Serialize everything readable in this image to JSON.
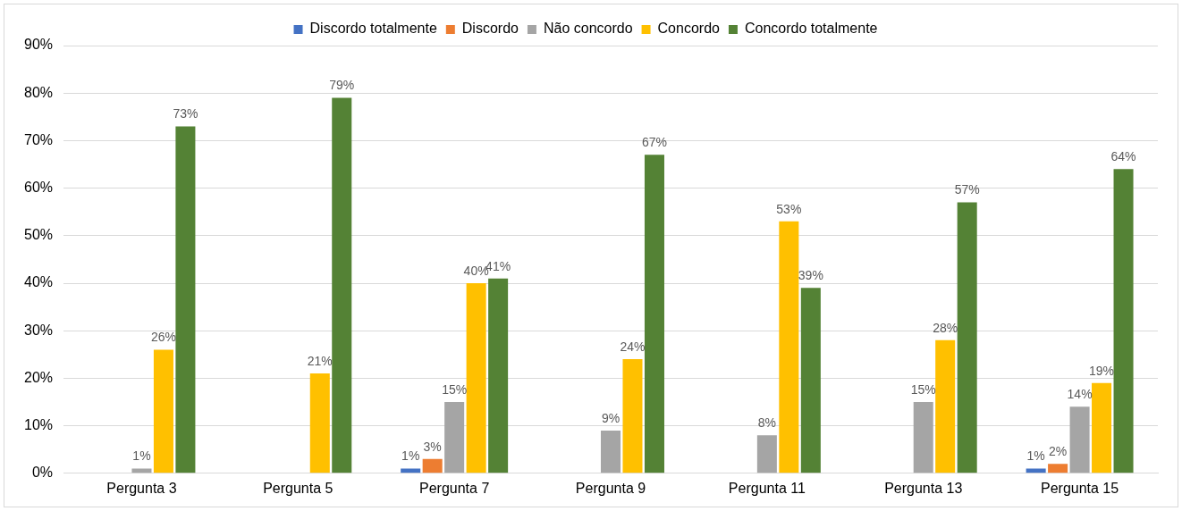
{
  "chart_data": {
    "type": "bar",
    "categories": [
      "Pergunta 3",
      "Pergunta 5",
      "Pergunta 7",
      "Pergunta 9",
      "Pergunta 11",
      "Pergunta 13",
      "Pergunta 15"
    ],
    "series": [
      {
        "name": "Discordo totalmente",
        "color": "#4472c4",
        "values": [
          null,
          null,
          1,
          null,
          null,
          null,
          1
        ],
        "value_labels": [
          null,
          null,
          "1%",
          null,
          null,
          null,
          "1%"
        ]
      },
      {
        "name": "Discordo",
        "color": "#ed7d31",
        "values": [
          null,
          null,
          3,
          null,
          null,
          null,
          2
        ],
        "value_labels": [
          null,
          null,
          "3%",
          null,
          null,
          null,
          "2%"
        ]
      },
      {
        "name": "Não concordo",
        "color": "#a5a5a5",
        "values": [
          1,
          null,
          15,
          9,
          8,
          15,
          14
        ],
        "value_labels": [
          "1%",
          null,
          "15%",
          "9%",
          "8%",
          "15%",
          "14%"
        ]
      },
      {
        "name": "Concordo",
        "color": "#ffc000",
        "values": [
          26,
          21,
          40,
          24,
          53,
          28,
          19
        ],
        "value_labels": [
          "26%",
          "21%",
          "40%",
          "24%",
          "53%",
          "28%",
          "19%"
        ]
      },
      {
        "name": "Concordo totalmente",
        "color": "#548235",
        "values": [
          73,
          79,
          41,
          67,
          39,
          57,
          64
        ],
        "value_labels": [
          "73%",
          "79%",
          "41%",
          "67%",
          "39%",
          "57%",
          "64%"
        ]
      }
    ],
    "ylim": [
      0,
      90
    ],
    "yticks": [
      {
        "value": 0,
        "label": "0%"
      },
      {
        "value": 10,
        "label": "10%"
      },
      {
        "value": 20,
        "label": "20%"
      },
      {
        "value": 30,
        "label": "30%"
      },
      {
        "value": 40,
        "label": "40%"
      },
      {
        "value": 50,
        "label": "50%"
      },
      {
        "value": 60,
        "label": "60%"
      },
      {
        "value": 70,
        "label": "70%"
      },
      {
        "value": 80,
        "label": "80%"
      },
      {
        "value": 90,
        "label": "90%"
      }
    ],
    "grid": "y",
    "legend": "top"
  }
}
